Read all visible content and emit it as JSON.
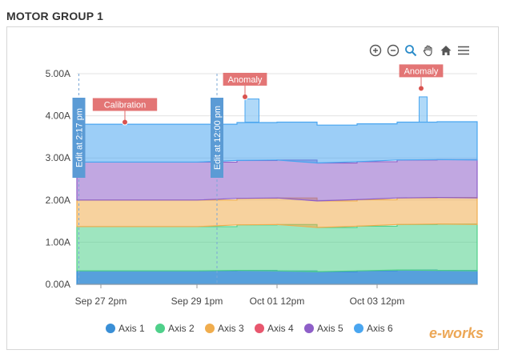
{
  "panel": {
    "title": "MOTOR GROUP 1"
  },
  "toolbar": {
    "items": [
      {
        "name": "zoom-in-icon"
      },
      {
        "name": "zoom-out-icon"
      },
      {
        "name": "magnifier-icon"
      },
      {
        "name": "pan-hand-icon"
      },
      {
        "name": "home-icon"
      },
      {
        "name": "menu-icon"
      }
    ]
  },
  "watermark": {
    "brand": "e-works"
  },
  "chart_data": {
    "type": "area",
    "stacked": true,
    "ylim": [
      0,
      5
    ],
    "yticks": [
      "0.00A",
      "1.00A",
      "2.00A",
      "3.00A",
      "4.00A",
      "5.00A"
    ],
    "xticks": [
      "Sep 27 2pm",
      "Sep 29 1pm",
      "Oct 01 12pm",
      "Oct 03 12pm"
    ],
    "grid": true,
    "legend_position": "bottom",
    "x": [
      0,
      2,
      3,
      4,
      5,
      6,
      7,
      8,
      9,
      10
    ],
    "series": [
      {
        "name": "Axis 1",
        "color": "#3a8fd6",
        "values": [
          0.32,
          0.32,
          0.32,
          0.33,
          0.32,
          0.3,
          0.32,
          0.34,
          0.33,
          0.32
        ]
      },
      {
        "name": "Axis 2",
        "color": "#4fd08a",
        "values": [
          1.05,
          1.05,
          1.05,
          1.08,
          1.1,
          1.05,
          1.06,
          1.08,
          1.1,
          1.1
        ]
      },
      {
        "name": "Axis 3",
        "color": "#f0ad4e",
        "values": [
          0.63,
          0.63,
          0.63,
          0.63,
          0.63,
          0.63,
          0.63,
          0.63,
          0.63,
          0.63
        ]
      },
      {
        "name": "Axis 4",
        "color": "#e8576e",
        "values": [
          0.0,
          0.0,
          0.0,
          0.0,
          0.0,
          0.0,
          0.0,
          0.0,
          0.0,
          0.0
        ]
      },
      {
        "name": "Axis 5",
        "color": "#8e5fc8",
        "values": [
          0.9,
          0.9,
          0.9,
          0.9,
          0.9,
          0.9,
          0.9,
          0.9,
          0.9,
          0.9
        ]
      },
      {
        "name": "Axis 6",
        "color": "#4aa6f0",
        "values": [
          0.9,
          0.9,
          0.9,
          0.9,
          0.9,
          0.9,
          0.9,
          0.9,
          0.9,
          0.9
        ]
      }
    ],
    "annotations": [
      {
        "label": "Calibration",
        "x": 1.2,
        "y": 3.85,
        "kind": "point"
      },
      {
        "label": "Anomaly",
        "x": 4.2,
        "y": 4.45,
        "kind": "point"
      },
      {
        "label": "Anomaly",
        "x": 8.6,
        "y": 4.65,
        "kind": "point"
      },
      {
        "label": "Edit at 2:17 pm",
        "x": 0.05,
        "kind": "vline"
      },
      {
        "label": "Edit at 12:00 pm",
        "x": 3.5,
        "kind": "vline"
      }
    ]
  }
}
